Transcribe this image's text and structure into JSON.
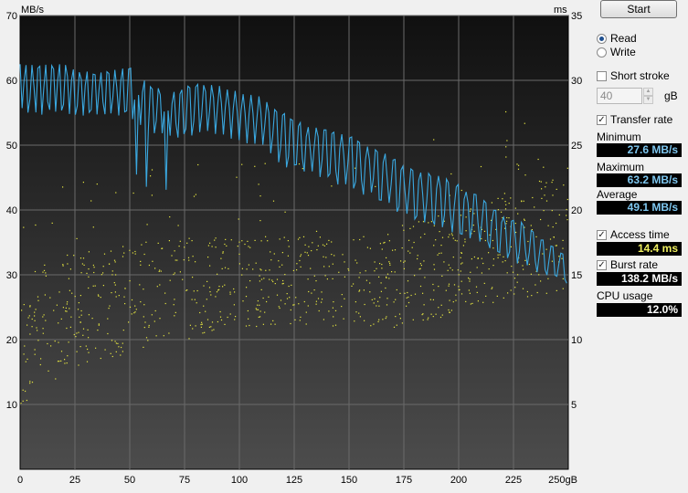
{
  "controls": {
    "start_label": "Start",
    "read_label": "Read",
    "write_label": "Write",
    "mode_selected": "Read",
    "short_stroke_label": "Short stroke",
    "short_stroke_checked": false,
    "short_stroke_value": "40",
    "short_stroke_unit": "gB",
    "transfer_rate_label": "Transfer rate",
    "transfer_rate_checked": true,
    "access_time_label": "Access time",
    "access_time_checked": true,
    "burst_rate_label": "Burst rate",
    "burst_rate_checked": true,
    "check_mark": "✓"
  },
  "stats": {
    "minimum_label": "Minimum",
    "minimum_value": "27.6 MB/s",
    "maximum_label": "Maximum",
    "maximum_value": "63.2 MB/s",
    "average_label": "Average",
    "average_value": "49.1 MB/s",
    "access_time_value": "14.4 ms",
    "burst_rate_value": "138.2 MB/s",
    "cpu_usage_label": "CPU usage",
    "cpu_usage_value": "12.0%"
  },
  "colors": {
    "transfer_line": "#3aa8e0",
    "access_dots": "#e8e840",
    "grid": "#6a6a6a"
  },
  "chart_data": {
    "type": "line",
    "left_axis_label": "MB/s",
    "right_axis_label": "ms",
    "x_unit_label": "gB",
    "xlim": [
      0,
      250
    ],
    "ylim_left": [
      0,
      70
    ],
    "ylim_right": [
      0,
      35
    ],
    "x_ticks": [
      "0",
      "25",
      "50",
      "75",
      "100",
      "125",
      "150",
      "175",
      "200",
      "225",
      "250"
    ],
    "y_left_ticks": [
      "10",
      "20",
      "30",
      "40",
      "50",
      "60",
      "70"
    ],
    "y_right_ticks": [
      "5",
      "10",
      "15",
      "20",
      "25",
      "30",
      "35"
    ],
    "grid": true,
    "series": [
      {
        "x": [
          0,
          10,
          20,
          30,
          40,
          50,
          60,
          70,
          80,
          90,
          100,
          110,
          120,
          125,
          130,
          140,
          150,
          160,
          170,
          180,
          190,
          200,
          210,
          220,
          230,
          240,
          250
        ],
        "upper": [
          62.5,
          62.5,
          62.5,
          61.5,
          61.5,
          62,
          59,
          58.5,
          59.5,
          59.5,
          58.5,
          57.5,
          55,
          54,
          53.5,
          52.5,
          51.5,
          50,
          48,
          46,
          45.5,
          44,
          42,
          39.5,
          38,
          35,
          33
        ],
        "lower": [
          55,
          54.5,
          54.5,
          54,
          54.5,
          54,
          51.5,
          51,
          51.5,
          51.5,
          50.5,
          49.5,
          46.5,
          46.5,
          45.5,
          44.5,
          43,
          42,
          40,
          38.5,
          37.5,
          36,
          35,
          32.5,
          31,
          29.5,
          28.5
        ]
      }
    ],
    "access_time_band_ms": [
      {
        "x": 0,
        "low": 5,
        "high": 15
      },
      {
        "x": 25,
        "low": 8,
        "high": 17
      },
      {
        "x": 50,
        "low": 9,
        "high": 17
      },
      {
        "x": 75,
        "low": 10,
        "high": 18
      },
      {
        "x": 100,
        "low": 11,
        "high": 18
      },
      {
        "x": 125,
        "low": 11,
        "high": 18
      },
      {
        "x": 150,
        "low": 11,
        "high": 18
      },
      {
        "x": 175,
        "low": 11,
        "high": 19
      },
      {
        "x": 200,
        "low": 12,
        "high": 20
      },
      {
        "x": 225,
        "low": 13,
        "high": 22
      },
      {
        "x": 250,
        "low": 14,
        "high": 23
      }
    ]
  }
}
